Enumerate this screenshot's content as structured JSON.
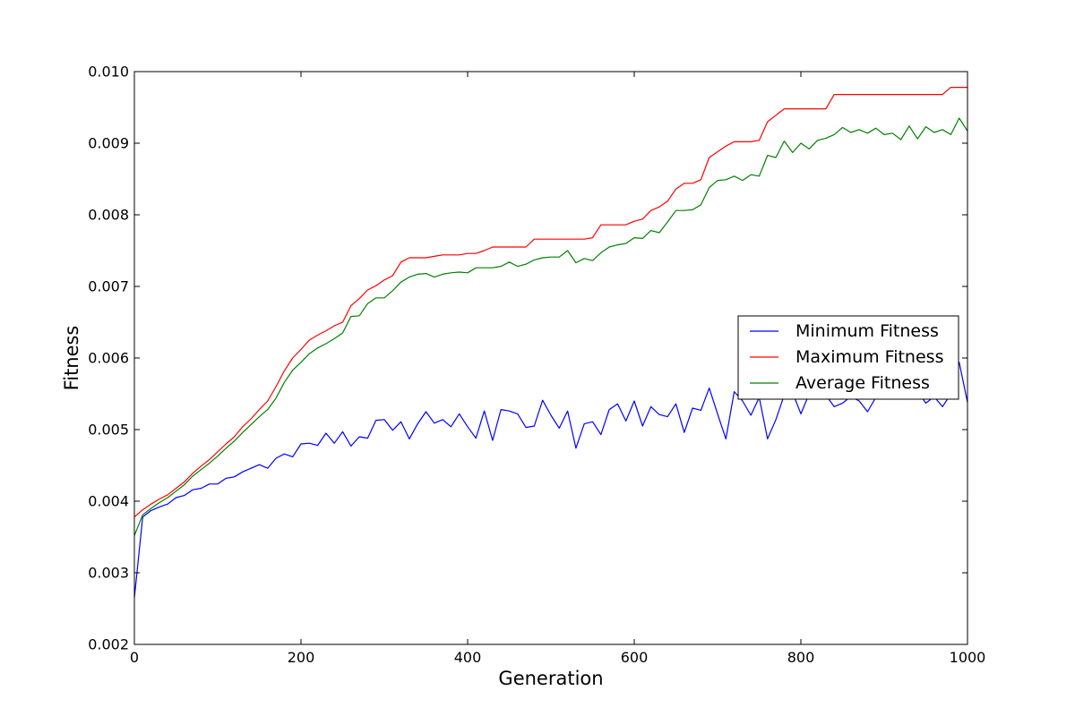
{
  "chart_data": {
    "type": "line",
    "title": "",
    "xlabel": "Generation",
    "ylabel": "Fitness",
    "xlim": [
      0,
      1000
    ],
    "ylim": [
      0.002,
      0.01
    ],
    "x_ticks": [
      0,
      200,
      400,
      600,
      800,
      1000
    ],
    "x_tick_labels": [
      "0",
      "200",
      "400",
      "600",
      "800",
      "1000"
    ],
    "y_ticks": [
      0.002,
      0.003,
      0.004,
      0.005,
      0.006,
      0.007,
      0.008,
      0.009,
      0.01
    ],
    "y_tick_labels": [
      "0.002",
      "0.003",
      "0.004",
      "0.005",
      "0.006",
      "0.007",
      "0.008",
      "0.009",
      "0.010"
    ],
    "grid": false,
    "legend_position": "right",
    "x": [
      0,
      10,
      20,
      30,
      40,
      50,
      60,
      70,
      80,
      90,
      100,
      110,
      120,
      130,
      140,
      150,
      160,
      170,
      180,
      190,
      200,
      210,
      220,
      230,
      240,
      250,
      260,
      270,
      280,
      290,
      300,
      310,
      320,
      330,
      340,
      350,
      360,
      370,
      380,
      390,
      400,
      410,
      420,
      430,
      440,
      450,
      460,
      470,
      480,
      490,
      500,
      510,
      520,
      530,
      540,
      550,
      560,
      570,
      580,
      590,
      600,
      610,
      620,
      630,
      640,
      650,
      660,
      670,
      680,
      690,
      700,
      710,
      720,
      730,
      740,
      750,
      760,
      770,
      780,
      790,
      800,
      810,
      820,
      830,
      840,
      850,
      860,
      870,
      880,
      890,
      900,
      910,
      920,
      930,
      940,
      950,
      960,
      970,
      980,
      990,
      1000
    ],
    "series": [
      {
        "name": "Minimum Fitness",
        "color": "#0000ff",
        "values": [
          0.00265,
          0.00378,
          0.00387,
          0.00392,
          0.00396,
          0.00405,
          0.00408,
          0.00416,
          0.00418,
          0.00424,
          0.00424,
          0.00432,
          0.00434,
          0.00441,
          0.00446,
          0.00451,
          0.00446,
          0.0046,
          0.00466,
          0.00462,
          0.0048,
          0.00481,
          0.00478,
          0.00495,
          0.00481,
          0.00497,
          0.00477,
          0.0049,
          0.00488,
          0.00513,
          0.00514,
          0.00499,
          0.00511,
          0.00487,
          0.00508,
          0.00525,
          0.00509,
          0.00514,
          0.00504,
          0.00522,
          0.00504,
          0.00488,
          0.00526,
          0.00485,
          0.00528,
          0.00526,
          0.00522,
          0.00503,
          0.00505,
          0.00541,
          0.0052,
          0.00502,
          0.00526,
          0.00474,
          0.00508,
          0.00511,
          0.00493,
          0.00528,
          0.00536,
          0.00512,
          0.0054,
          0.00505,
          0.00532,
          0.00521,
          0.00518,
          0.00536,
          0.00496,
          0.0053,
          0.00527,
          0.00558,
          0.00522,
          0.00487,
          0.00553,
          0.0054,
          0.0052,
          0.00545,
          0.00487,
          0.00514,
          0.00548,
          0.00552,
          0.00522,
          0.0055,
          0.00548,
          0.00548,
          0.00532,
          0.00537,
          0.00546,
          0.0054,
          0.00525,
          0.00545,
          0.00547,
          0.0055,
          0.00552,
          0.00551,
          0.00553,
          0.00537,
          0.00546,
          0.00532,
          0.0055,
          0.00594,
          0.00538
        ]
      },
      {
        "name": "Maximum Fitness",
        "color": "#ff0000",
        "values": [
          0.00378,
          0.00388,
          0.00396,
          0.00403,
          0.00409,
          0.00418,
          0.00427,
          0.00439,
          0.00449,
          0.00458,
          0.00469,
          0.0048,
          0.0049,
          0.00504,
          0.00515,
          0.00528,
          0.0054,
          0.0056,
          0.00582,
          0.006,
          0.00612,
          0.00625,
          0.00632,
          0.00638,
          0.00645,
          0.0065,
          0.00673,
          0.00683,
          0.00695,
          0.00701,
          0.00709,
          0.00715,
          0.00734,
          0.0074,
          0.0074,
          0.0074,
          0.00742,
          0.00744,
          0.00744,
          0.00744,
          0.00746,
          0.00746,
          0.0075,
          0.00755,
          0.00755,
          0.00755,
          0.00755,
          0.00755,
          0.00766,
          0.00766,
          0.00766,
          0.00766,
          0.00766,
          0.00766,
          0.00766,
          0.00768,
          0.00786,
          0.00786,
          0.00786,
          0.00786,
          0.00791,
          0.00794,
          0.00806,
          0.00811,
          0.00819,
          0.00836,
          0.00844,
          0.00844,
          0.00849,
          0.0088,
          0.00888,
          0.00896,
          0.00902,
          0.00902,
          0.00902,
          0.00904,
          0.0093,
          0.00939,
          0.00948,
          0.00948,
          0.00948,
          0.00948,
          0.00948,
          0.00948,
          0.00968,
          0.00968,
          0.00968,
          0.00968,
          0.00968,
          0.00968,
          0.00968,
          0.00968,
          0.00968,
          0.00968,
          0.00968,
          0.00968,
          0.00968,
          0.00968,
          0.00978,
          0.00978,
          0.00978
        ]
      },
      {
        "name": "Average Fitness",
        "color": "#008000",
        "values": [
          0.00352,
          0.00381,
          0.0039,
          0.00398,
          0.00405,
          0.00414,
          0.00423,
          0.00435,
          0.00444,
          0.00453,
          0.00463,
          0.00474,
          0.00484,
          0.00496,
          0.00507,
          0.00518,
          0.00528,
          0.00544,
          0.00566,
          0.00583,
          0.00594,
          0.00606,
          0.00614,
          0.0062,
          0.00627,
          0.00635,
          0.00658,
          0.00659,
          0.00676,
          0.00684,
          0.00684,
          0.00694,
          0.00706,
          0.00713,
          0.00717,
          0.00718,
          0.00713,
          0.00717,
          0.00719,
          0.0072,
          0.00719,
          0.00726,
          0.00726,
          0.00726,
          0.00728,
          0.00734,
          0.00728,
          0.00731,
          0.00737,
          0.0074,
          0.00741,
          0.00741,
          0.0075,
          0.00733,
          0.00739,
          0.00736,
          0.00747,
          0.00755,
          0.00758,
          0.0076,
          0.00768,
          0.00767,
          0.00778,
          0.00775,
          0.0079,
          0.00806,
          0.00806,
          0.00807,
          0.00814,
          0.00838,
          0.00848,
          0.00849,
          0.00854,
          0.00848,
          0.00856,
          0.00854,
          0.00883,
          0.0088,
          0.00903,
          0.00887,
          0.009,
          0.00892,
          0.00904,
          0.00907,
          0.00912,
          0.00922,
          0.00915,
          0.00919,
          0.00914,
          0.00921,
          0.00912,
          0.00914,
          0.00905,
          0.00924,
          0.00906,
          0.00923,
          0.00915,
          0.00919,
          0.00912,
          0.00935,
          0.00917
        ]
      }
    ]
  }
}
